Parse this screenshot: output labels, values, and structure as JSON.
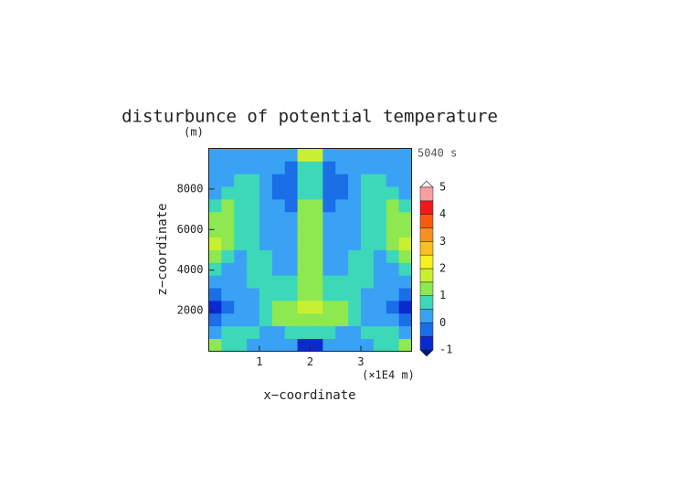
{
  "chart_data": {
    "type": "contour",
    "title": "disturbunce of potential temperature",
    "y_unit": "(m)",
    "time_label": "5040 s",
    "x_unit": "(×1E4 m)",
    "xlabel": "x−coordinate",
    "ylabel": "z−coordinate",
    "xlim": [
      0,
      4
    ],
    "ylim": [
      0,
      10000
    ],
    "xticks": [
      1,
      2,
      3
    ],
    "yticks": [
      2000,
      4000,
      6000,
      8000
    ],
    "x": [
      0.125,
      0.375,
      0.625,
      0.875,
      1.125,
      1.375,
      1.625,
      1.875,
      2.125,
      2.375,
      2.625,
      2.875,
      3.125,
      3.375,
      3.625,
      3.875
    ],
    "z": [
      312.5,
      937.5,
      1562.5,
      2187.5,
      2812.5,
      3437.5,
      4062.5,
      4687.5,
      5312.5,
      5937.5,
      6562.5,
      7187.5,
      7812.5,
      8437.5,
      9062.5,
      9687.5
    ],
    "values": [
      [
        1.25,
        0.75,
        0.75,
        0.25,
        0.25,
        0.25,
        0.25,
        -0.75,
        -0.75,
        0.25,
        0.25,
        0.25,
        0.25,
        0.75,
        0.75,
        1.25
      ],
      [
        0.25,
        0.75,
        0.75,
        0.75,
        0.25,
        0.25,
        0.75,
        0.75,
        0.75,
        0.75,
        0.25,
        0.25,
        0.75,
        0.75,
        0.75,
        0.25
      ],
      [
        -0.25,
        0.25,
        0.25,
        0.25,
        0.75,
        1.25,
        1.25,
        1.25,
        1.25,
        1.25,
        1.25,
        0.75,
        0.25,
        0.25,
        0.25,
        -0.25
      ],
      [
        -0.75,
        -0.25,
        0.25,
        0.25,
        0.75,
        1.25,
        1.25,
        1.75,
        1.75,
        1.25,
        1.25,
        0.75,
        0.25,
        0.25,
        -0.25,
        -0.75
      ],
      [
        -0.25,
        0.25,
        0.25,
        0.25,
        0.75,
        0.75,
        0.75,
        1.25,
        1.25,
        0.75,
        0.75,
        0.75,
        0.25,
        0.25,
        0.25,
        -0.25
      ],
      [
        0.25,
        0.25,
        0.25,
        0.75,
        0.75,
        0.75,
        0.75,
        1.25,
        1.25,
        0.75,
        0.75,
        0.75,
        0.75,
        0.25,
        0.25,
        0.25
      ],
      [
        0.75,
        0.25,
        0.25,
        0.75,
        0.75,
        0.25,
        0.25,
        1.25,
        1.25,
        0.25,
        0.25,
        0.75,
        0.75,
        0.25,
        0.25,
        0.75
      ],
      [
        1.25,
        0.75,
        0.25,
        0.75,
        0.75,
        0.25,
        0.25,
        1.25,
        1.25,
        0.25,
        0.25,
        0.75,
        0.75,
        0.25,
        0.75,
        1.25
      ],
      [
        1.75,
        1.25,
        0.75,
        0.75,
        0.25,
        0.25,
        0.25,
        1.25,
        1.25,
        0.25,
        0.25,
        0.25,
        0.75,
        0.75,
        1.25,
        1.75
      ],
      [
        1.25,
        1.25,
        0.75,
        0.75,
        0.25,
        0.25,
        0.25,
        1.25,
        1.25,
        0.25,
        0.25,
        0.25,
        0.75,
        0.75,
        1.25,
        1.25
      ],
      [
        1.25,
        1.25,
        0.75,
        0.75,
        0.25,
        0.25,
        0.25,
        1.25,
        1.25,
        0.25,
        0.25,
        0.25,
        0.75,
        0.75,
        1.25,
        1.25
      ],
      [
        0.75,
        1.25,
        0.75,
        0.75,
        0.25,
        0.25,
        -0.25,
        1.25,
        1.25,
        -0.25,
        0.25,
        0.25,
        0.75,
        0.75,
        1.25,
        0.75
      ],
      [
        0.25,
        0.75,
        0.75,
        0.75,
        0.25,
        -0.25,
        -0.25,
        0.75,
        0.75,
        -0.25,
        -0.25,
        0.25,
        0.75,
        0.75,
        0.75,
        0.25
      ],
      [
        0.25,
        0.25,
        0.75,
        0.75,
        0.25,
        -0.25,
        -0.25,
        0.75,
        0.75,
        -0.25,
        -0.25,
        0.25,
        0.75,
        0.75,
        0.25,
        0.25
      ],
      [
        0.25,
        0.25,
        0.25,
        0.25,
        0.25,
        0.25,
        -0.25,
        0.75,
        0.75,
        -0.25,
        0.25,
        0.25,
        0.25,
        0.25,
        0.25,
        0.25
      ],
      [
        0.25,
        0.25,
        0.25,
        0.25,
        0.25,
        0.25,
        0.25,
        1.75,
        1.75,
        0.25,
        0.25,
        0.25,
        0.25,
        0.25,
        0.25,
        0.25
      ]
    ],
    "levels": [
      -1,
      -0.5,
      0,
      0.5,
      1,
      1.5,
      2,
      2.5,
      3,
      3.5,
      4,
      4.5,
      5
    ],
    "colors": [
      "#0a2ad0",
      "#1a6ee8",
      "#3aa2f4",
      "#3cd8b8",
      "#8ee850",
      "#c8f030",
      "#f8f020",
      "#f8c020",
      "#f89020",
      "#f85a10",
      "#f01818",
      "#f8a0a0"
    ],
    "colorbar_ticks": [
      -1,
      0,
      1,
      2,
      3,
      4,
      5
    ]
  }
}
